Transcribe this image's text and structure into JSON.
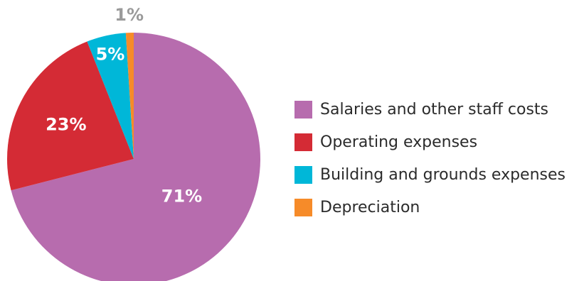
{
  "chart_data": {
    "type": "pie",
    "title": "",
    "slices": [
      {
        "label": "Salaries and other staff costs",
        "value": 71,
        "display": "71%",
        "color": "#b76cae"
      },
      {
        "label": "Operating expenses",
        "value": 23,
        "display": "23%",
        "color": "#d42b35"
      },
      {
        "label": "Building and grounds expenses",
        "value": 5,
        "display": "5%",
        "color": "#00b7d8"
      },
      {
        "label": "Depreciation",
        "value": 1,
        "display": "1%",
        "color": "#f68b29"
      }
    ],
    "legend_position": "right",
    "start_angle": "12 o'clock",
    "direction": "clockwise"
  }
}
